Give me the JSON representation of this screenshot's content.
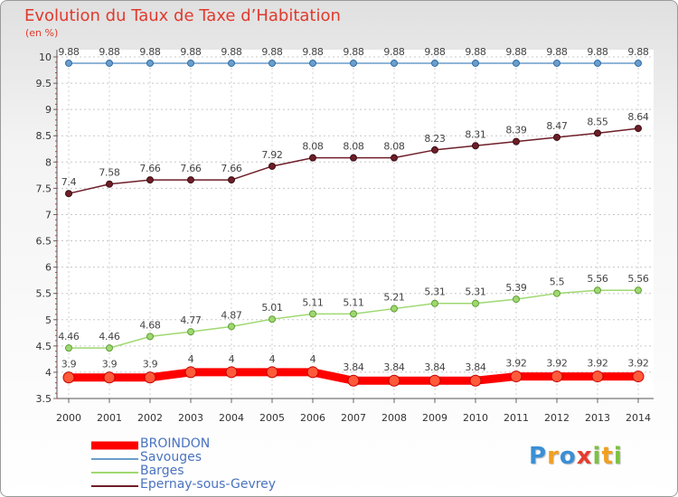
{
  "chart_data": {
    "type": "line",
    "title": "Evolution du Taux de Taxe d’Habitation",
    "ylabel": "(en %)",
    "xlabel": "",
    "ylim": [
      3.5,
      10
    ],
    "yticks": [
      "3.5",
      "4",
      "4.5",
      "5",
      "5.5",
      "6",
      "6.5",
      "7",
      "7.5",
      "8",
      "8.5",
      "9",
      "9.5",
      "10"
    ],
    "grid": true,
    "legend_position": "bottom-left",
    "x": [
      "2000",
      "2001",
      "2002",
      "2003",
      "2004",
      "2005",
      "2006",
      "2007",
      "2008",
      "2009",
      "2010",
      "2011",
      "2012",
      "2013",
      "2014"
    ],
    "series": [
      {
        "name": "BROINDON",
        "color": "#ff0000",
        "values": [
          3.9,
          3.9,
          3.9,
          4,
          4,
          4,
          4,
          3.84,
          3.84,
          3.84,
          3.84,
          3.92,
          3.92,
          3.92,
          3.92
        ],
        "labels": [
          "3.9",
          "3.9",
          "3.9",
          "4",
          "4",
          "4",
          "4",
          "3.84",
          "3.84",
          "3.84",
          "3.84",
          "3.92",
          "3.92",
          "3.92",
          "3.92"
        ]
      },
      {
        "name": "Savouges",
        "color": "#6a9ecb",
        "values": [
          9.88,
          9.88,
          9.88,
          9.88,
          9.88,
          9.88,
          9.88,
          9.88,
          9.88,
          9.88,
          9.88,
          9.88,
          9.88,
          9.88,
          9.88
        ],
        "labels": [
          "9.88",
          "9.88",
          "9.88",
          "9.88",
          "9.88",
          "9.88",
          "9.88",
          "9.88",
          "9.88",
          "9.88",
          "9.88",
          "9.88",
          "9.88",
          "9.88",
          "9.88"
        ]
      },
      {
        "name": "Barges",
        "color": "#9fd870",
        "values": [
          4.46,
          4.46,
          4.68,
          4.77,
          4.87,
          5.01,
          5.11,
          5.11,
          5.21,
          5.31,
          5.31,
          5.39,
          5.5,
          5.56,
          5.56
        ],
        "labels": [
          "4.46",
          "4.46",
          "4.68",
          "4.77",
          "4.87",
          "5.01",
          "5.11",
          "5.11",
          "5.21",
          "5.31",
          "5.31",
          "5.39",
          "5.5",
          "5.56",
          "5.56"
        ]
      },
      {
        "name": "Epernay-sous-Gevrey",
        "color": "#6e1e28",
        "values": [
          7.4,
          7.58,
          7.66,
          7.66,
          7.66,
          7.92,
          8.08,
          8.08,
          8.08,
          8.23,
          8.31,
          8.39,
          8.47,
          8.55,
          8.64
        ],
        "labels": [
          "7.4",
          "7.58",
          "7.66",
          "7.66",
          "7.66",
          "7.92",
          "8.08",
          "8.08",
          "8.08",
          "8.23",
          "8.31",
          "8.39",
          "8.47",
          "8.55",
          "8.64"
        ]
      }
    ]
  },
  "logo": {
    "letters": [
      "P",
      "r",
      "o",
      "x",
      "i",
      "t",
      "i"
    ],
    "colors": [
      "#3a8fd6",
      "#f0a020",
      "#3a8fd6",
      "#e63c2e",
      "#7cc242",
      "#f0a020",
      "#7cc242"
    ]
  }
}
